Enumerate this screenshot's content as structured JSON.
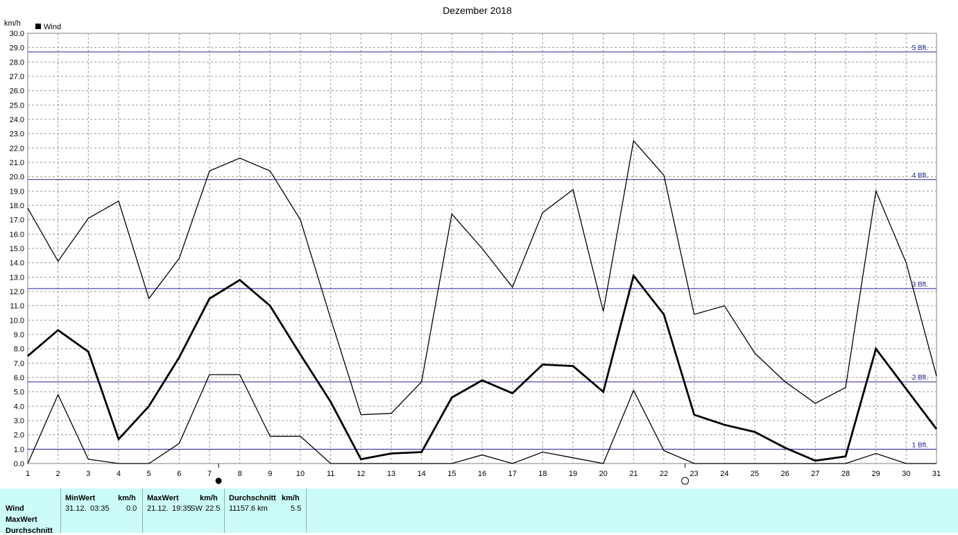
{
  "chart_data": {
    "type": "line",
    "title": "Dezember 2018",
    "ylabel": "km/h",
    "legend": {
      "label": "Wind",
      "color": "#000000",
      "placement": "top-left"
    },
    "x": [
      1,
      2,
      3,
      4,
      5,
      6,
      7,
      8,
      9,
      10,
      11,
      12,
      13,
      14,
      15,
      16,
      17,
      18,
      19,
      20,
      21,
      22,
      23,
      24,
      25,
      26,
      27,
      28,
      29,
      30,
      31
    ],
    "ylim": [
      0,
      30
    ],
    "yticks": [
      "0.0",
      "1.0",
      "2.0",
      "3.0",
      "4.0",
      "5.0",
      "6.0",
      "7.0",
      "8.0",
      "9.0",
      "10.0",
      "11.0",
      "12.0",
      "13.0",
      "14.0",
      "15.0",
      "16.0",
      "17.0",
      "18.0",
      "19.0",
      "20.0",
      "21.0",
      "22.0",
      "23.0",
      "24.0",
      "25.0",
      "26.0",
      "27.0",
      "28.0",
      "29.0",
      "30.0"
    ],
    "grid": true,
    "series": [
      {
        "role": "max",
        "width": 1.3,
        "values": [
          17.8,
          14.1,
          17.1,
          18.3,
          11.5,
          14.3,
          20.4,
          21.3,
          20.4,
          17.0,
          10.1,
          3.4,
          3.5,
          5.7,
          17.4,
          15.0,
          12.3,
          17.5,
          19.1,
          10.6,
          22.5,
          20.1,
          10.4,
          11.0,
          7.7,
          5.7,
          4.2,
          5.3,
          19.0,
          14.0,
          6.1
        ]
      },
      {
        "role": "avg",
        "width": 2.8,
        "values": [
          7.5,
          9.3,
          7.8,
          1.7,
          4.0,
          7.4,
          11.5,
          12.8,
          11.0,
          7.6,
          4.3,
          0.3,
          0.7,
          0.8,
          4.6,
          5.8,
          4.9,
          6.9,
          6.8,
          5.0,
          13.1,
          10.4,
          3.4,
          2.7,
          2.2,
          1.1,
          0.2,
          0.5,
          8.0,
          5.2,
          2.4
        ]
      },
      {
        "role": "min",
        "width": 1.3,
        "values": [
          0.0,
          4.8,
          0.3,
          0.0,
          0.0,
          1.4,
          6.2,
          6.2,
          1.9,
          1.9,
          0.0,
          0.0,
          0.0,
          0.0,
          0.0,
          0.6,
          0.0,
          0.8,
          0.4,
          0.0,
          5.1,
          0.9,
          0.0,
          0.0,
          0.0,
          0.0,
          0.0,
          0.0,
          0.7,
          0.0,
          0.0
        ]
      }
    ],
    "reference_lines": [
      {
        "label": "1 Bft.",
        "value": 1.0
      },
      {
        "label": "2 Bft.",
        "value": 5.7
      },
      {
        "label": "3 Bft.",
        "value": 12.2
      },
      {
        "label": "4 Bft.",
        "value": 19.8
      },
      {
        "label": "5 Bft.",
        "value": 28.7
      }
    ],
    "reference_color": "#2020a0",
    "moon_phases": [
      {
        "day": 7.3,
        "phase": "new-moon"
      },
      {
        "day": 22.7,
        "phase": "full-moon"
      }
    ]
  },
  "info_table": {
    "headers": {
      "min": "MinWert",
      "max": "MaxWert",
      "avg": "Durchschnitt",
      "unit_min": "km/h",
      "unit_max": "km/h",
      "unit_avg": "km/h"
    },
    "row_labels": [
      "Wind",
      "MaxWert",
      "Durchschnitt"
    ],
    "wind": {
      "min_date": "31.12.",
      "min_time": "03:35",
      "min_value": "0.0",
      "max_date": "21.12.",
      "max_time": "19:35",
      "max_dir": "SW",
      "max_value": "22.5",
      "distance": "11157.6 km",
      "avg_value": "5.5"
    }
  }
}
